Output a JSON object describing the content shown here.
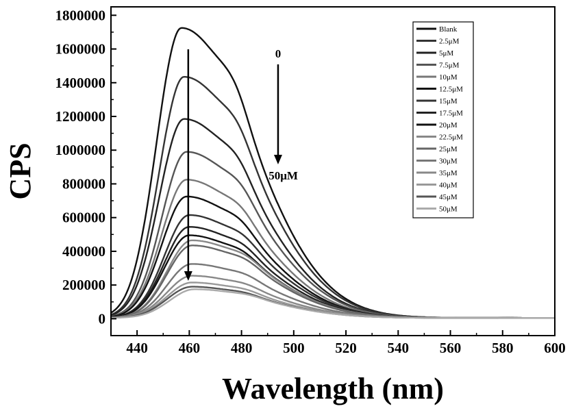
{
  "chart_data": {
    "type": "line",
    "title": "",
    "xlabel": "Wavelength (nm)",
    "ylabel": "CPS",
    "xlim": [
      430,
      600
    ],
    "ylim": [
      -100000,
      1850000
    ],
    "xticks": [
      440,
      460,
      480,
      500,
      520,
      540,
      560,
      580,
      600
    ],
    "yticks": [
      0,
      200000,
      400000,
      600000,
      800000,
      1000000,
      1200000,
      1400000,
      1600000,
      1800000
    ],
    "legend_position": "top-right",
    "grid": false,
    "annotations": {
      "top_label": "0",
      "bottom_label": "50μM"
    },
    "series": [
      {
        "name": "Blank",
        "peak_x": 457,
        "peak": 1720000,
        "color": "#111111"
      },
      {
        "name": "2.5μM",
        "peak_x": 458,
        "peak": 1430000,
        "color": "#333333"
      },
      {
        "name": "5μM",
        "peak_x": 458,
        "peak": 1180000,
        "color": "#222222"
      },
      {
        "name": "7.5μM",
        "peak_x": 459,
        "peak": 985000,
        "color": "#555555"
      },
      {
        "name": "10μM",
        "peak_x": 459,
        "peak": 820000,
        "color": "#777777"
      },
      {
        "name": "12.5μM",
        "peak_x": 459,
        "peak": 720000,
        "color": "#111111"
      },
      {
        "name": "15μM",
        "peak_x": 460,
        "peak": 610000,
        "color": "#333333"
      },
      {
        "name": "17.5μM",
        "peak_x": 460,
        "peak": 540000,
        "color": "#222222"
      },
      {
        "name": "20μM",
        "peak_x": 460,
        "peak": 490000,
        "color": "#111111"
      },
      {
        "name": "22.5μM",
        "peak_x": 461,
        "peak": 460000,
        "color": "#888888"
      },
      {
        "name": "25μM",
        "peak_x": 461,
        "peak": 430000,
        "color": "#666666"
      },
      {
        "name": "30μM",
        "peak_x": 461,
        "peak": 320000,
        "color": "#777777"
      },
      {
        "name": "35μM",
        "peak_x": 461,
        "peak": 250000,
        "color": "#888888"
      },
      {
        "name": "40μM",
        "peak_x": 461,
        "peak": 210000,
        "color": "#999999"
      },
      {
        "name": "45μM",
        "peak_x": 461,
        "peak": 185000,
        "color": "#555555"
      },
      {
        "name": "50μM",
        "peak_x": 462,
        "peak": 170000,
        "color": "#aaaaaa"
      }
    ]
  }
}
